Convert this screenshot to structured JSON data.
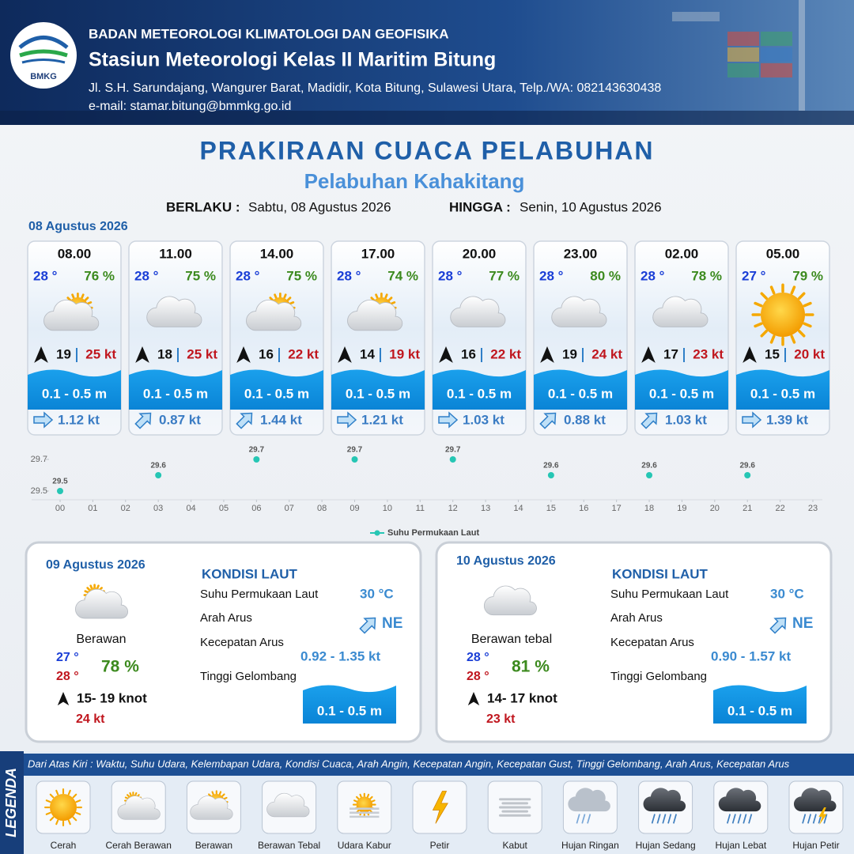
{
  "header": {
    "logo": "BMKG",
    "agency": "BADAN METEOROLOGI KLIMATOLOGI DAN GEOFISIKA",
    "station": "Stasiun Meteorologi Kelas II Maritim Bitung",
    "address": "Jl. S.H. Sarundajang, Wangurer Barat, Madidir, Kota Bitung, Sulawesi Utara, Telp./WA: 082143630438",
    "email": "e-mail: stamar.bitung@bmmkg.go.id"
  },
  "title": "PRAKIRAAN CUACA PELABUHAN",
  "subtitle": "Pelabuhan Kahakitang",
  "validity": {
    "from_label": "BERLAKU :",
    "from": "Sabtu, 08 Agustus 2026",
    "to_label": "HINGGA :",
    "to": "Senin, 10 Agustus 2026"
  },
  "day1": {
    "date": "08 Agustus 2026",
    "forecasts": [
      {
        "time": "08.00",
        "temp": "28 °",
        "humidity": "76 %",
        "wind": "19",
        "gust": "25 kt",
        "wave": "0.1 - 0.5 m",
        "current": "1.12 kt"
      },
      {
        "time": "11.00",
        "temp": "28 °",
        "humidity": "75 %",
        "wind": "18",
        "gust": "25 kt",
        "wave": "0.1 - 0.5 m",
        "current": "0.87 kt"
      },
      {
        "time": "14.00",
        "temp": "28 °",
        "humidity": "75 %",
        "wind": "16",
        "gust": "22 kt",
        "wave": "0.1 - 0.5 m",
        "current": "1.44 kt"
      },
      {
        "time": "17.00",
        "temp": "28 °",
        "humidity": "74 %",
        "wind": "14",
        "gust": "19 kt",
        "wave": "0.1 - 0.5 m",
        "current": "1.21 kt"
      },
      {
        "time": "20.00",
        "temp": "28 °",
        "humidity": "77 %",
        "wind": "16",
        "gust": "22 kt",
        "wave": "0.1 - 0.5 m",
        "current": "1.03 kt"
      },
      {
        "time": "23.00",
        "temp": "28 °",
        "humidity": "80 %",
        "wind": "19",
        "gust": "24 kt",
        "wave": "0.1 - 0.5 m",
        "current": "0.88 kt"
      },
      {
        "time": "02.00",
        "temp": "28 °",
        "humidity": "78 %",
        "wind": "17",
        "gust": "23 kt",
        "wave": "0.1 - 0.5 m",
        "current": "1.03 kt"
      },
      {
        "time": "05.00",
        "temp": "27 °",
        "humidity": "79 %",
        "wind": "15",
        "gust": "20 kt",
        "wave": "0.1 - 0.5 m",
        "current": "1.39 kt"
      }
    ]
  },
  "chart_data": {
    "type": "scatter",
    "x": [
      0,
      3,
      6,
      9,
      12,
      15,
      18,
      21
    ],
    "series": [
      {
        "name": "Suhu Permukaan Laut",
        "color": "#26c6b4",
        "values": [
          29.5,
          29.6,
          29.7,
          29.7,
          29.7,
          29.6,
          29.6,
          29.6
        ]
      }
    ],
    "xlim": [
      -0.5,
      23.5
    ],
    "xticks": [
      {
        "value": 0,
        "label": "00"
      },
      {
        "value": 1,
        "label": "01"
      },
      {
        "value": 2,
        "label": "02"
      },
      {
        "value": 3,
        "label": "03"
      },
      {
        "value": 4,
        "label": "04"
      },
      {
        "value": 5,
        "label": "05"
      },
      {
        "value": 6,
        "label": "06"
      },
      {
        "value": 7,
        "label": "07"
      },
      {
        "value": 8,
        "label": "08"
      },
      {
        "value": 9,
        "label": "09"
      },
      10,
      11,
      12,
      13,
      14,
      15,
      16,
      17,
      18,
      19,
      20,
      21,
      22,
      23
    ],
    "ylim": [
      29.45,
      29.75
    ],
    "yticks": [
      29.5,
      29.7
    ]
  },
  "day_panels": [
    {
      "date": "09 Agustus 2026",
      "weather": "Berawan",
      "temp_min": "27 °",
      "temp_max": "28 °",
      "humidity": "78 %",
      "wind": "15- 19 knot",
      "gust": "24 kt",
      "heading": "KONDISI LAUT",
      "sst_label": "Suhu Permukaan Laut",
      "sst": "30 °C",
      "dir_label": "Arah Arus",
      "dir": "NE",
      "speed_label": "Kecepatan Arus",
      "speed": "0.92 - 1.35 kt",
      "wave_label": "Tinggi Gelombang",
      "wave": "0.1 - 0.5 m"
    },
    {
      "date": "10 Agustus 2026",
      "weather": "Berawan tebal",
      "temp_min": "28 °",
      "temp_max": "28 °",
      "humidity": "81 %",
      "wind": "14- 17 knot",
      "gust": "23 kt",
      "heading": "KONDISI LAUT",
      "sst_label": "Suhu Permukaan Laut",
      "sst": "30 °C",
      "dir_label": "Arah Arus",
      "dir": "NE",
      "speed_label": "Kecepatan Arus",
      "speed": "0.90 - 1.57 kt",
      "wave_label": "Tinggi Gelombang",
      "wave": "0.1 - 0.5 m"
    }
  ],
  "legend": {
    "title": "LEGENDA",
    "description": "Dari Atas Kiri : Waktu, Suhu Udara, Kelembapan Udara, Kondisi Cuaca, Arah Angin, Kecepatan Angin, Kecepatan Gust, Tinggi Gelombang, Arah Arus, Kecepatan Arus",
    "items": [
      "Cerah",
      "Cerah Berawan",
      "Berawan",
      "Berawan Tebal",
      "Udara Kabur",
      "Petir",
      "Kabut",
      "Hujan Ringan",
      "Hujan Sedang",
      "Hujan Lebat",
      "Hujan Petir"
    ]
  }
}
